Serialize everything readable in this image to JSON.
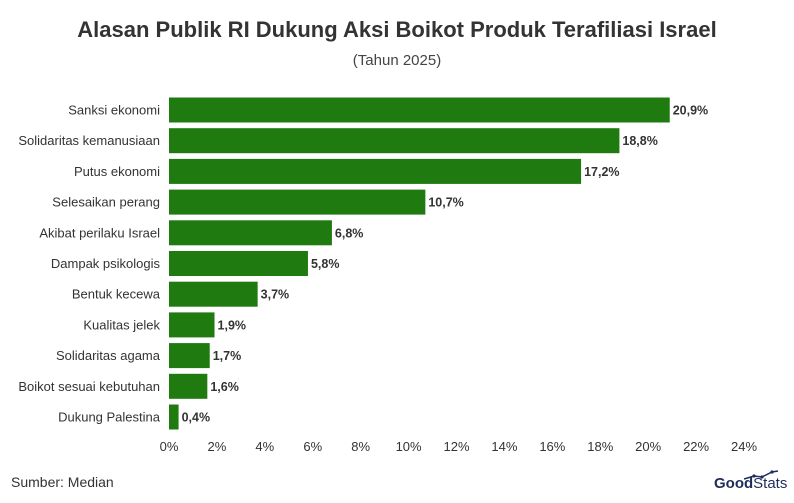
{
  "colors": {
    "bar": "#1f7a10",
    "text": "#333333",
    "brand": "#1f2d5c"
  },
  "source": "Sumber: Median",
  "logo": {
    "part1": "Good",
    "part2": "Stats"
  },
  "chart_data": {
    "type": "bar",
    "orientation": "horizontal",
    "title": "Alasan Publik RI Dukung Aksi Boikot Produk Terafiliasi Israel",
    "subtitle": "(Tahun 2025)",
    "categories": [
      "Sanksi ekonomi",
      "Solidaritas kemanusiaan",
      "Putus ekonomi",
      "Selesaikan perang",
      "Akibat perilaku Israel",
      "Dampak psikologis",
      "Bentuk kecewa",
      "Kualitas jelek",
      "Solidaritas agama",
      "Boikot sesuai kebutuhan",
      "Dukung Palestina"
    ],
    "values": [
      20.9,
      18.8,
      17.2,
      10.7,
      6.8,
      5.8,
      3.7,
      1.9,
      1.7,
      1.6,
      0.4
    ],
    "value_labels": [
      "20,9%",
      "18,8%",
      "17,2%",
      "10,7%",
      "6,8%",
      "5,8%",
      "3,7%",
      "1,9%",
      "1,7%",
      "1,6%",
      "0,4%"
    ],
    "xlim": [
      0,
      24
    ],
    "xticks": [
      "0%",
      "2%",
      "4%",
      "6%",
      "8%",
      "10%",
      "12%",
      "14%",
      "16%",
      "18%",
      "20%",
      "22%",
      "24%"
    ],
    "grid": false,
    "legend": "none"
  }
}
